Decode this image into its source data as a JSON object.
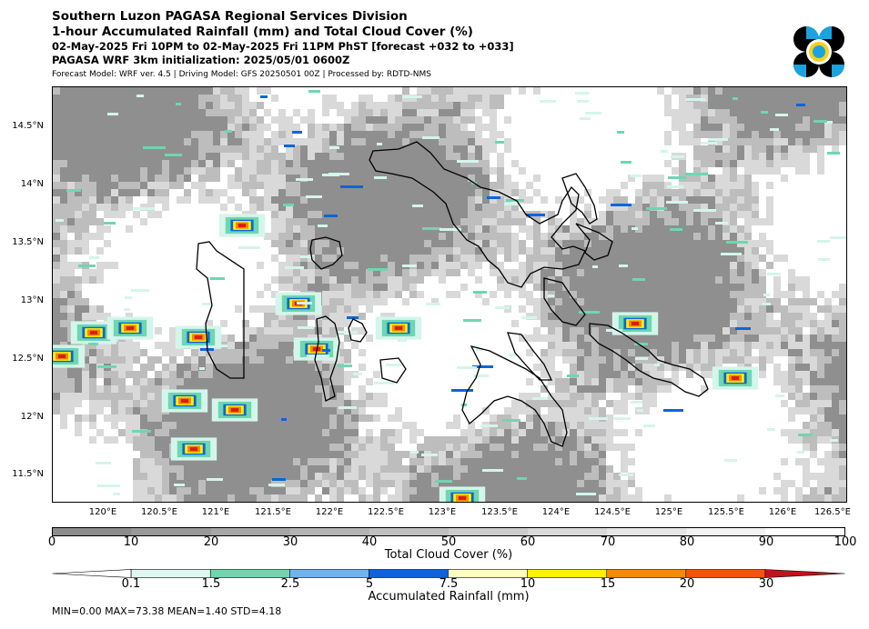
{
  "header": {
    "line1": "Southern Luzon PAGASA Regional Services Division",
    "line2": "1-hour Accumulated Rainfall (mm) and Total Cloud Cover (%)",
    "line3": "02-May-2025 Fri 10PM to 02-May-2025 Fri 11PM PhST [forecast +032 to +033]",
    "line4": "PAGASA WRF 3km initialization: 2025/05/01 0600Z",
    "line5": "Forecast Model: WRF ver. 4.5 | Driving Model: GFS 20250501 00Z | Processed by: RDTD-NMS"
  },
  "map": {
    "lat_labels": [
      "14.5°N",
      "14°N",
      "13.5°N",
      "13°N",
      "12.5°N",
      "12°N",
      "11.5°N"
    ],
    "lon_labels": [
      "120°E",
      "120.5°E",
      "121°E",
      "121.5°E",
      "122°E",
      "122.5°E",
      "123°E",
      "123.5°E",
      "124°E",
      "124.5°E",
      "125°E",
      "125.5°E",
      "126°E",
      "126.5°E"
    ],
    "colors": {
      "land_outline": "#000000",
      "cloud_light": "#d9d9d9",
      "cloud_mid": "#bdbdbd",
      "cloud_dark": "#8f8f8f",
      "rain_light": "#d4f5ec",
      "rain_aqua": "#6fd6b0",
      "rain_blue": "#0a66d9",
      "rain_yellow": "#fff200",
      "rain_orange": "#f28a0c",
      "rain_red": "#d9200f"
    }
  },
  "cloud_colorbar": {
    "title": "Total Cloud Cover (%)",
    "ticks": [
      "0",
      "10",
      "20",
      "30",
      "40",
      "50",
      "60",
      "70",
      "80",
      "90",
      "100"
    ],
    "colors": [
      "#8c8c8c",
      "#999999",
      "#a6a6a6",
      "#b3b3b3",
      "#bfbfbf",
      "#cccccc",
      "#d9d9d9",
      "#e6e6e6",
      "#f2f2f2",
      "#ffffff"
    ]
  },
  "rain_colorbar": {
    "title": "Accumulated Rainfall (mm)",
    "ticks": [
      "0.1",
      "1.5",
      "2.5",
      "5",
      "7.5",
      "10",
      "15",
      "20",
      "30"
    ],
    "colors": [
      "#ffffff",
      "#dff7f0",
      "#6fd6b0",
      "#6fb3f2",
      "#0a66d9",
      "#ffffbf",
      "#fff200",
      "#f28a0c",
      "#f0560c",
      "#c0141d"
    ]
  },
  "stats": "MIN=0.00   MAX=73.38   MEAN=1.40   STD=4.18"
}
